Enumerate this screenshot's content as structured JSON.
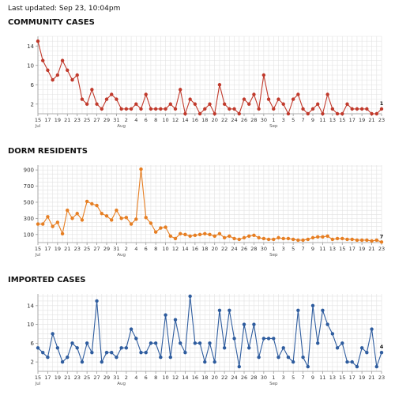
{
  "last_updated": "Last updated: Sep 23, 10:04pm",
  "x_labels": [
    "15",
    "17",
    "19",
    "21",
    "23",
    "25",
    "27",
    "29",
    "31",
    "2",
    "4",
    "6",
    "8",
    "10",
    "12",
    "14",
    "16",
    "18",
    "20",
    "22",
    "24",
    "26",
    "28",
    "30",
    "1",
    "3",
    "5",
    "7",
    "9",
    "11",
    "13",
    "15",
    "17",
    "19",
    "21",
    "23"
  ],
  "month_labels": [
    "Jul",
    "Aug",
    "Sep"
  ],
  "chart_data": [
    {
      "type": "line",
      "title": "COMMUNITY CASES",
      "color": "#c0392b",
      "ylim": [
        0,
        16
      ],
      "yticks": [
        "2",
        "6",
        "10",
        "14"
      ],
      "end_label": "1",
      "x": [
        "Jul 15",
        "Jul 16",
        "Jul 17",
        "Jul 18",
        "Jul 19",
        "Jul 20",
        "Jul 21",
        "Jul 22",
        "Jul 23",
        "Jul 24",
        "Jul 25",
        "Jul 26",
        "Jul 27",
        "Jul 28",
        "Jul 29",
        "Jul 30",
        "Jul 31",
        "Aug 1",
        "Aug 2",
        "Aug 3",
        "Aug 4",
        "Aug 5",
        "Aug 6",
        "Aug 7",
        "Aug 8",
        "Aug 9",
        "Aug 10",
        "Aug 11",
        "Aug 12",
        "Aug 13",
        "Aug 14",
        "Aug 15",
        "Aug 16",
        "Aug 17",
        "Aug 18",
        "Aug 19",
        "Aug 20",
        "Aug 21",
        "Aug 22",
        "Aug 23",
        "Aug 24",
        "Aug 25",
        "Aug 26",
        "Aug 27",
        "Aug 28",
        "Aug 29",
        "Aug 30",
        "Aug 31",
        "Sep 1",
        "Sep 2",
        "Sep 3",
        "Sep 4",
        "Sep 5",
        "Sep 6",
        "Sep 7",
        "Sep 8",
        "Sep 9",
        "Sep 10",
        "Sep 11",
        "Sep 12",
        "Sep 13",
        "Sep 14",
        "Sep 15",
        "Sep 16",
        "Sep 17",
        "Sep 18",
        "Sep 19",
        "Sep 20",
        "Sep 21",
        "Sep 22",
        "Sep 23"
      ],
      "values": [
        15,
        11,
        9,
        7,
        8,
        11,
        9,
        7,
        8,
        3,
        2,
        5,
        2,
        1,
        3,
        4,
        3,
        1,
        1,
        1,
        2,
        1,
        4,
        1,
        1,
        1,
        1,
        2,
        1,
        5,
        0,
        3,
        2,
        0,
        1,
        2,
        0,
        6,
        2,
        1,
        1,
        0,
        3,
        2,
        4,
        1,
        8,
        3,
        1,
        3,
        2,
        0,
        3,
        4,
        1,
        0,
        1,
        2,
        0,
        4,
        1,
        0,
        0,
        2,
        1,
        1,
        1,
        1,
        0,
        0,
        1
      ]
    },
    {
      "type": "line",
      "title": "DORM RESIDENTS",
      "color": "#e67e22",
      "ylim": [
        0,
        960
      ],
      "yticks": [
        "100",
        "300",
        "500",
        "700",
        "900"
      ],
      "end_label": "7",
      "x": [
        "Jul 15",
        "Jul 16",
        "Jul 17",
        "Jul 18",
        "Jul 19",
        "Jul 20",
        "Jul 21",
        "Jul 22",
        "Jul 23",
        "Jul 24",
        "Jul 25",
        "Jul 26",
        "Jul 27",
        "Jul 28",
        "Jul 29",
        "Jul 30",
        "Jul 31",
        "Aug 1",
        "Aug 2",
        "Aug 3",
        "Aug 4",
        "Aug 5",
        "Aug 6",
        "Aug 7",
        "Aug 8",
        "Aug 9",
        "Aug 10",
        "Aug 11",
        "Aug 12",
        "Aug 13",
        "Aug 14",
        "Aug 15",
        "Aug 16",
        "Aug 17",
        "Aug 18",
        "Aug 19",
        "Aug 20",
        "Aug 21",
        "Aug 22",
        "Aug 23",
        "Aug 24",
        "Aug 25",
        "Aug 26",
        "Aug 27",
        "Aug 28",
        "Aug 29",
        "Aug 30",
        "Aug 31",
        "Sep 1",
        "Sep 2",
        "Sep 3",
        "Sep 4",
        "Sep 5",
        "Sep 6",
        "Sep 7",
        "Sep 8",
        "Sep 9",
        "Sep 10",
        "Sep 11",
        "Sep 12",
        "Sep 13",
        "Sep 14",
        "Sep 15",
        "Sep 16",
        "Sep 17",
        "Sep 18",
        "Sep 19",
        "Sep 20",
        "Sep 21",
        "Sep 22",
        "Sep 23"
      ],
      "values": [
        230,
        230,
        320,
        200,
        250,
        110,
        400,
        300,
        360,
        280,
        510,
        480,
        460,
        360,
        330,
        280,
        400,
        300,
        310,
        230,
        290,
        910,
        310,
        240,
        130,
        180,
        190,
        80,
        50,
        110,
        100,
        80,
        90,
        100,
        110,
        100,
        80,
        110,
        60,
        80,
        50,
        40,
        60,
        80,
        90,
        60,
        50,
        40,
        40,
        60,
        50,
        50,
        40,
        30,
        30,
        40,
        60,
        70,
        70,
        80,
        40,
        50,
        50,
        40,
        40,
        30,
        30,
        30,
        20,
        30,
        7
      ]
    },
    {
      "type": "line",
      "title": "IMPORTED CASES",
      "color": "#2e5c9e",
      "ylim": [
        0,
        16.5
      ],
      "yticks": [
        "2",
        "6",
        "10",
        "14"
      ],
      "end_label": "4",
      "x": [
        "Jul 15",
        "Jul 16",
        "Jul 17",
        "Jul 18",
        "Jul 19",
        "Jul 20",
        "Jul 21",
        "Jul 22",
        "Jul 23",
        "Jul 24",
        "Jul 25",
        "Jul 26",
        "Jul 27",
        "Jul 28",
        "Jul 29",
        "Jul 30",
        "Jul 31",
        "Aug 1",
        "Aug 2",
        "Aug 3",
        "Aug 4",
        "Aug 5",
        "Aug 6",
        "Aug 7",
        "Aug 8",
        "Aug 9",
        "Aug 10",
        "Aug 11",
        "Aug 12",
        "Aug 13",
        "Aug 14",
        "Aug 15",
        "Aug 16",
        "Aug 17",
        "Aug 18",
        "Aug 19",
        "Aug 20",
        "Aug 21",
        "Aug 22",
        "Aug 23",
        "Aug 24",
        "Aug 25",
        "Aug 26",
        "Aug 27",
        "Aug 28",
        "Aug 29",
        "Aug 30",
        "Aug 31",
        "Sep 1",
        "Sep 2",
        "Sep 3",
        "Sep 4",
        "Sep 5",
        "Sep 6",
        "Sep 7",
        "Sep 8",
        "Sep 9",
        "Sep 10",
        "Sep 11",
        "Sep 12",
        "Sep 13",
        "Sep 14",
        "Sep 15",
        "Sep 16",
        "Sep 17",
        "Sep 18",
        "Sep 19",
        "Sep 20",
        "Sep 21",
        "Sep 22",
        "Sep 23"
      ],
      "values": [
        5,
        4,
        3,
        8,
        5,
        2,
        3,
        6,
        5,
        2,
        6,
        4,
        15,
        2,
        4,
        4,
        3,
        5,
        5,
        9,
        7,
        4,
        4,
        6,
        6,
        3,
        12,
        3,
        11,
        6,
        4,
        16,
        6,
        6,
        2,
        6,
        2,
        13,
        5,
        13,
        7,
        1,
        10,
        5,
        10,
        3,
        7,
        7,
        7,
        3,
        5,
        3,
        2,
        13,
        3,
        1,
        14,
        6,
        13,
        10,
        8,
        5,
        6,
        2,
        2,
        1,
        5,
        4,
        9,
        1,
        4
      ]
    }
  ]
}
